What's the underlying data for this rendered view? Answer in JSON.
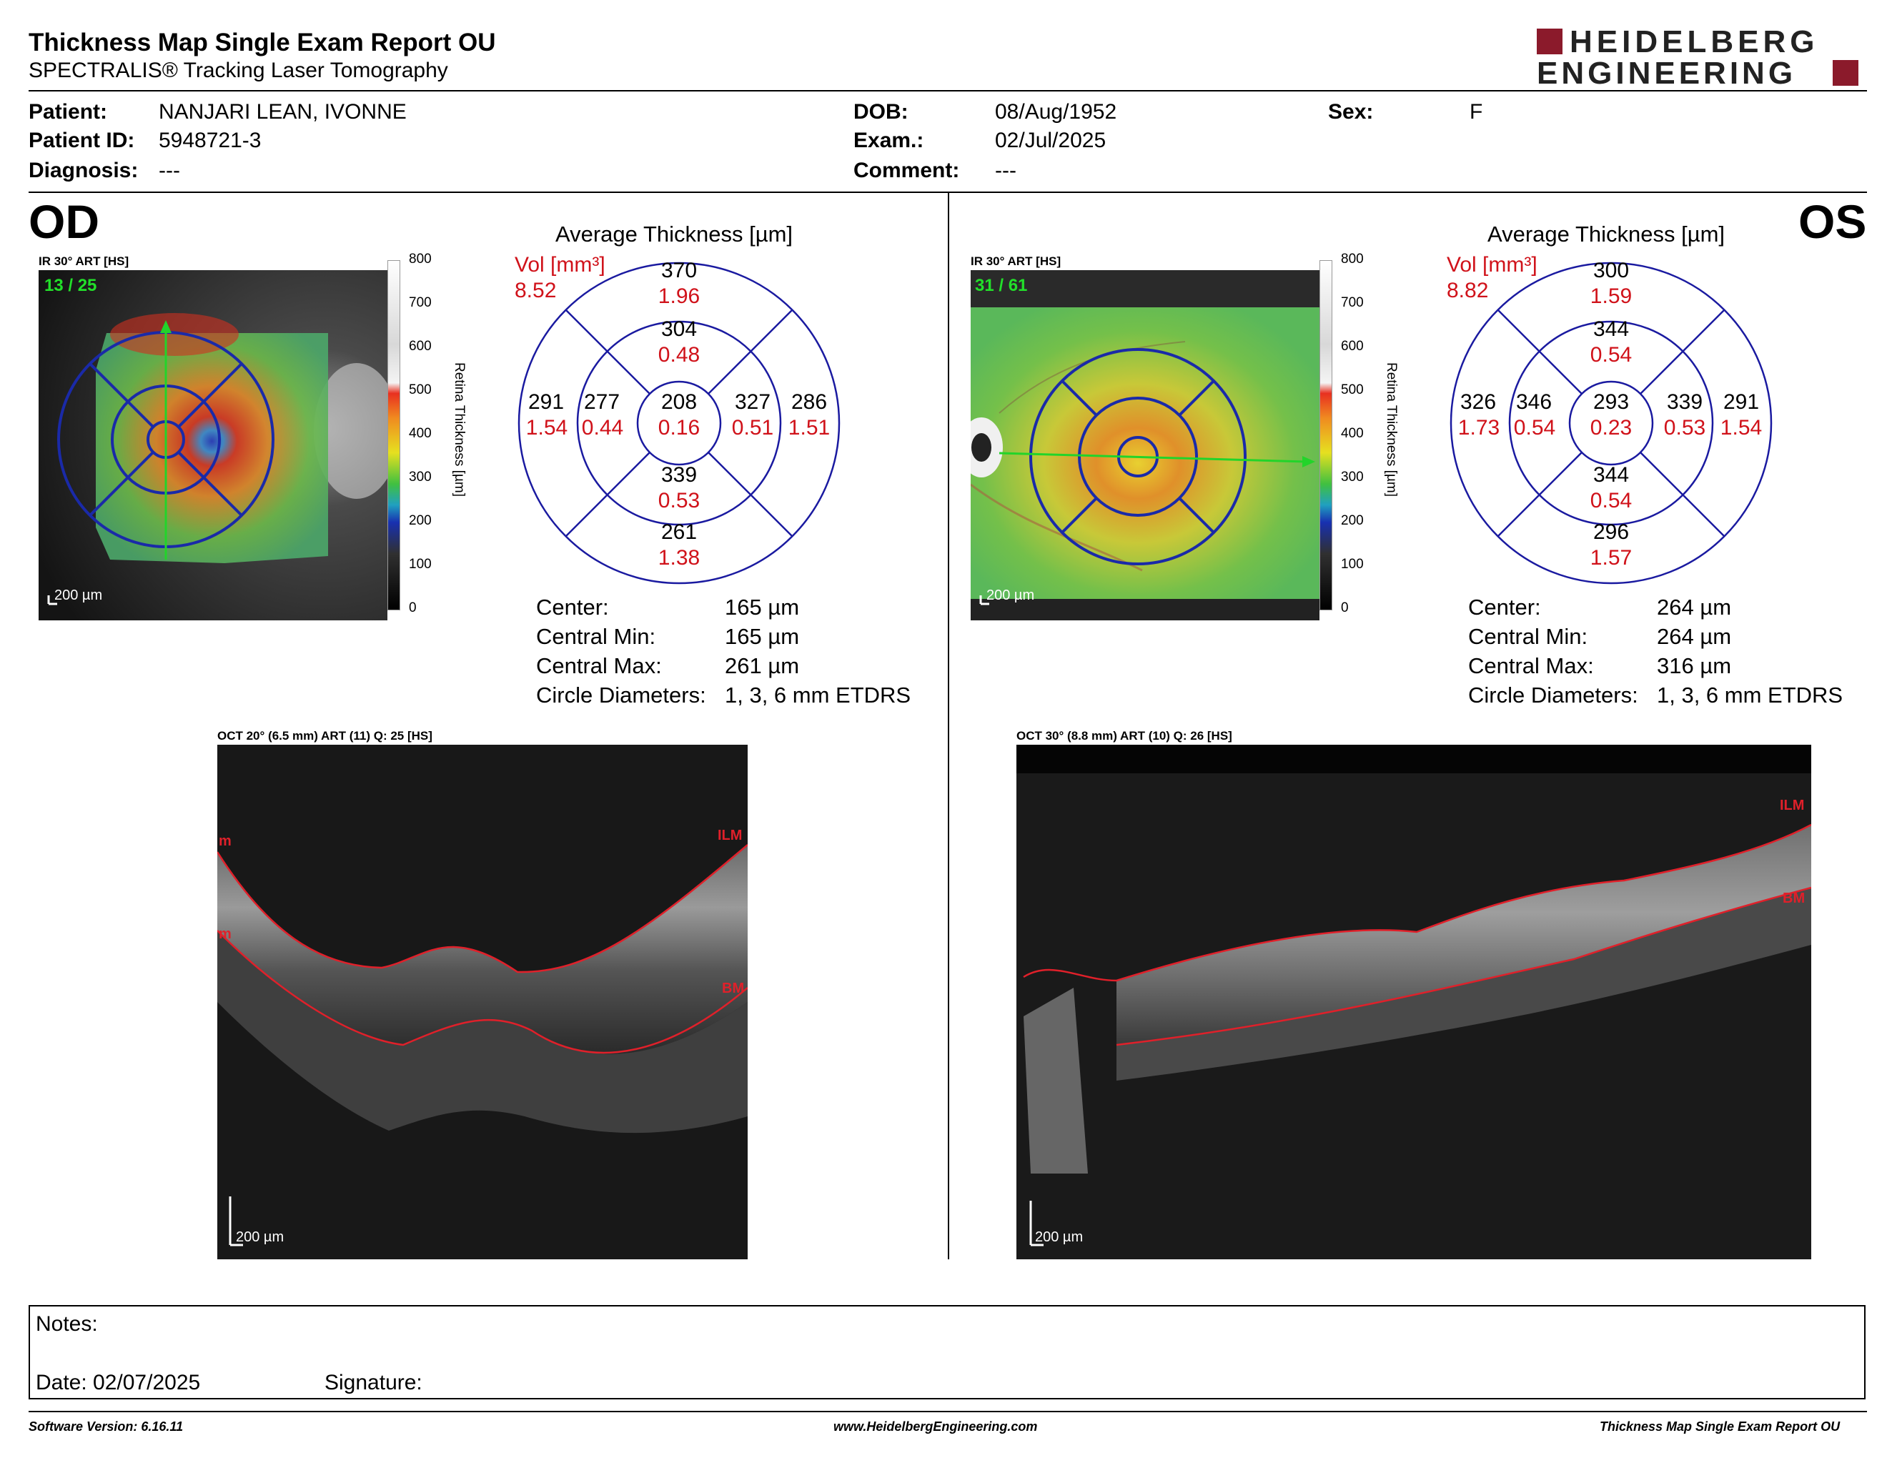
{
  "header": {
    "title": "Thickness Map Single Exam Report OU",
    "subtitle": "SPECTRALIS® Tracking Laser Tomography",
    "logo_line1": "HEIDELBERG",
    "logo_line2": "ENGINEERING",
    "brand_color": "#8b1a2b"
  },
  "patient": {
    "patient_label": "Patient:",
    "patient_value": "NANJARI LEAN, IVONNE",
    "id_label": "Patient ID:",
    "id_value": "5948721-3",
    "diagnosis_label": "Diagnosis:",
    "diagnosis_value": "---",
    "dob_label": "DOB:",
    "dob_value": "08/Aug/1952",
    "exam_label": "Exam.:",
    "exam_value": "02/Jul/2025",
    "comment_label": "Comment:",
    "comment_value": "---",
    "sex_label": "Sex:",
    "sex_value": "F"
  },
  "colorbar": {
    "ticks": [
      "800",
      "700",
      "600",
      "500",
      "400",
      "300",
      "200",
      "100",
      "0"
    ],
    "label": "Retina  Thickness [µm]"
  },
  "od": {
    "eye_label": "OD",
    "ir_title": "IR 30° ART [HS]",
    "frame_count": "13 / 25",
    "scale_label": "200 µm",
    "avg_title": "Average Thickness [µm]",
    "vol_label": "Vol [mm³]",
    "vol_total": "8.52",
    "sectors": {
      "outer_sup": {
        "t": "370",
        "v": "1.96"
      },
      "inner_sup": {
        "t": "304",
        "v": "0.48"
      },
      "outer_left": {
        "t": "291",
        "v": "1.54"
      },
      "inner_left": {
        "t": "277",
        "v": "0.44"
      },
      "center": {
        "t": "208",
        "v": "0.16"
      },
      "inner_right": {
        "t": "327",
        "v": "0.51"
      },
      "outer_right": {
        "t": "286",
        "v": "1.51"
      },
      "inner_inf": {
        "t": "339",
        "v": "0.53"
      },
      "outer_inf": {
        "t": "261",
        "v": "1.38"
      }
    },
    "stats": {
      "center_label": "Center:",
      "center_value": "165 µm",
      "min_label": "Central Min:",
      "min_value": "165 µm",
      "max_label": "Central Max:",
      "max_value": "261 µm",
      "diam_label": "Circle Diameters:",
      "diam_value": "1, 3, 6 mm ETDRS"
    },
    "oct_title": "OCT 20° (6.5 mm) ART (11) Q: 25 [HS]",
    "oct_scale": "200 µm",
    "oct_ilm": "ILM",
    "oct_bm": "BM",
    "oct_left_top": "m",
    "oct_left_bot": "m"
  },
  "os": {
    "eye_label": "OS",
    "ir_title": "IR 30° ART [HS]",
    "frame_count": "31 / 61",
    "scale_label": "200 µm",
    "avg_title": "Average Thickness [µm]",
    "vol_label": "Vol [mm³]",
    "vol_total": "8.82",
    "sectors": {
      "outer_sup": {
        "t": "300",
        "v": "1.59"
      },
      "inner_sup": {
        "t": "344",
        "v": "0.54"
      },
      "outer_left": {
        "t": "326",
        "v": "1.73"
      },
      "inner_left": {
        "t": "346",
        "v": "0.54"
      },
      "center": {
        "t": "293",
        "v": "0.23"
      },
      "inner_right": {
        "t": "339",
        "v": "0.53"
      },
      "outer_right": {
        "t": "291",
        "v": "1.54"
      },
      "inner_inf": {
        "t": "344",
        "v": "0.54"
      },
      "outer_inf": {
        "t": "296",
        "v": "1.57"
      }
    },
    "stats": {
      "center_label": "Center:",
      "center_value": "264 µm",
      "min_label": "Central Min:",
      "min_value": "264 µm",
      "max_label": "Central Max:",
      "max_value": "316 µm",
      "diam_label": "Circle Diameters:",
      "diam_value": "1, 3, 6 mm ETDRS"
    },
    "oct_title": "OCT 30° (8.8 mm) ART (10) Q: 26 [HS]",
    "oct_scale": "200 µm",
    "oct_ilm": "ILM",
    "oct_bm": "BM"
  },
  "notes": {
    "notes_label": "Notes:",
    "date_label": "Date: 02/07/2025",
    "signature_label": "Signature:"
  },
  "footer": {
    "software": "Software Version: 6.16.11",
    "website": "www.HeidelbergEngineering.com",
    "report_name": "Thickness Map Single Exam Report OU"
  }
}
